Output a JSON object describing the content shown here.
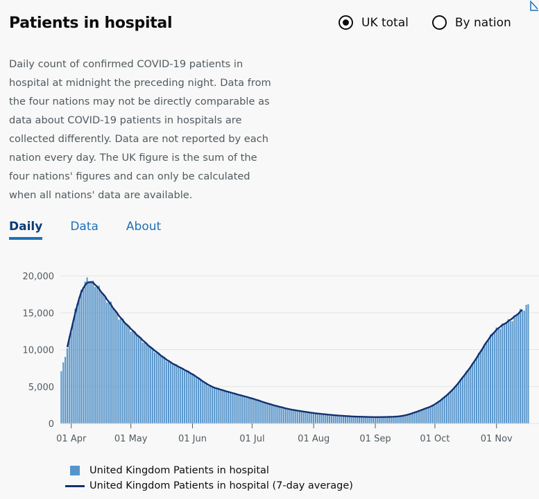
{
  "title": "Patients in hospital",
  "radios": [
    {
      "label": "UK total",
      "selected": true
    },
    {
      "label": "By nation",
      "selected": false
    }
  ],
  "description": "Daily count of confirmed COVID-19 patients in hospital at midnight the preceding night. Data from the four nations may not be directly comparable as data about COVID-19 patients in hospitals are collected differently. Data are not reported by each nation every day. The UK figure is the sum of the four nations' figures and can only be calculated when all nations' data are available.",
  "tabs": [
    {
      "label": "Daily",
      "active": true
    },
    {
      "label": "Data",
      "active": false
    },
    {
      "label": "About",
      "active": false
    }
  ],
  "colors": {
    "bars": "#5694ca",
    "line": "#12316e",
    "accent": "#1d70b8"
  },
  "chart_data": {
    "type": "bar",
    "x_start": "2020-03-27",
    "x_end": "2020-11-17",
    "ylim": [
      0,
      20000
    ],
    "grid": true,
    "legend_position": "bottom-left",
    "y_ticks": [
      "0",
      "5,000",
      "10,000",
      "15,000",
      "20,000"
    ],
    "y_tick_values": [
      0,
      5000,
      10000,
      15000,
      20000
    ],
    "x_ticks": [
      "01 Apr",
      "01 May",
      "01 Jun",
      "01 Jul",
      "01 Aug",
      "01 Sep",
      "01 Oct",
      "01 Nov"
    ],
    "x_tick_dates": [
      "2020-04-01",
      "2020-05-01",
      "2020-06-01",
      "2020-07-01",
      "2020-08-01",
      "2020-09-01",
      "2020-10-01",
      "2020-11-01"
    ],
    "anchors": [
      [
        "2020-03-27",
        7000
      ],
      [
        "2020-03-29",
        9200
      ],
      [
        "2020-04-01",
        12500
      ],
      [
        "2020-04-04",
        16500
      ],
      [
        "2020-04-07",
        18800
      ],
      [
        "2020-04-10",
        19500
      ],
      [
        "2020-04-12",
        19300
      ],
      [
        "2020-04-15",
        18200
      ],
      [
        "2020-04-20",
        16500
      ],
      [
        "2020-04-25",
        14500
      ],
      [
        "2020-05-01",
        12800
      ],
      [
        "2020-05-10",
        10500
      ],
      [
        "2020-05-20",
        8400
      ],
      [
        "2020-06-01",
        6700
      ],
      [
        "2020-06-10",
        5000
      ],
      [
        "2020-06-20",
        4200
      ],
      [
        "2020-07-01",
        3400
      ],
      [
        "2020-07-10",
        2600
      ],
      [
        "2020-07-20",
        1900
      ],
      [
        "2020-08-01",
        1400
      ],
      [
        "2020-08-10",
        1150
      ],
      [
        "2020-08-20",
        950
      ],
      [
        "2020-09-01",
        850
      ],
      [
        "2020-09-10",
        900
      ],
      [
        "2020-09-15",
        1000
      ],
      [
        "2020-09-20",
        1400
      ],
      [
        "2020-10-01",
        2500
      ],
      [
        "2020-10-10",
        4500
      ],
      [
        "2020-10-20",
        8000
      ],
      [
        "2020-10-28",
        11500
      ],
      [
        "2020-11-01",
        12800
      ],
      [
        "2020-11-05",
        13500
      ],
      [
        "2020-11-10",
        14400
      ],
      [
        "2020-11-14",
        15400
      ],
      [
        "2020-11-17",
        16200
      ]
    ],
    "series": [
      {
        "name": "United Kingdom Patients in hospital",
        "type": "bar"
      },
      {
        "name": "United Kingdom Patients in hospital (7-day average)",
        "type": "line",
        "start": "2020-03-30",
        "end": "2020-11-14"
      }
    ]
  }
}
